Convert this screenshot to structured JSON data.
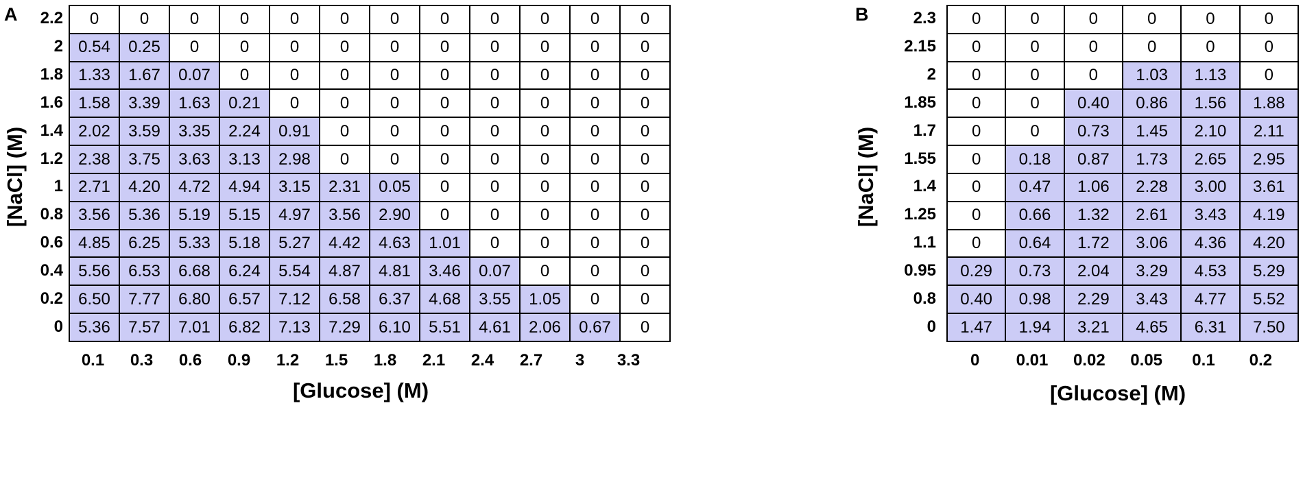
{
  "chart_data": [
    {
      "type": "heatmap",
      "panel": "A",
      "xlabel": "[Glucose]  (M)",
      "ylabel": "[NaCl]  (M)",
      "x": [
        "0.1",
        "0.3",
        "0.6",
        "0.9",
        "1.2",
        "1.5",
        "1.8",
        "2.1",
        "2.4",
        "2.7",
        "3",
        "3.3"
      ],
      "y": [
        "2.2",
        "2",
        "1.8",
        "1.6",
        "1.4",
        "1.2",
        "1",
        "0.8",
        "0.6",
        "0.4",
        "0.2",
        "0"
      ],
      "values": [
        [
          "0",
          "0",
          "0",
          "0",
          "0",
          "0",
          "0",
          "0",
          "0",
          "0",
          "0",
          "0"
        ],
        [
          "0.54",
          "0.25",
          "0",
          "0",
          "0",
          "0",
          "0",
          "0",
          "0",
          "0",
          "0",
          "0"
        ],
        [
          "1.33",
          "1.67",
          "0.07",
          "0",
          "0",
          "0",
          "0",
          "0",
          "0",
          "0",
          "0",
          "0"
        ],
        [
          "1.58",
          "3.39",
          "1.63",
          "0.21",
          "0",
          "0",
          "0",
          "0",
          "0",
          "0",
          "0",
          "0"
        ],
        [
          "2.02",
          "3.59",
          "3.35",
          "2.24",
          "0.91",
          "0",
          "0",
          "0",
          "0",
          "0",
          "0",
          "0"
        ],
        [
          "2.38",
          "3.75",
          "3.63",
          "3.13",
          "2.98",
          "0",
          "0",
          "0",
          "0",
          "0",
          "0",
          "0"
        ],
        [
          "2.71",
          "4.20",
          "4.72",
          "4.94",
          "3.15",
          "2.31",
          "0.05",
          "0",
          "0",
          "0",
          "0",
          "0"
        ],
        [
          "3.56",
          "5.36",
          "5.19",
          "5.15",
          "4.97",
          "3.56",
          "2.90",
          "0",
          "0",
          "0",
          "0",
          "0"
        ],
        [
          "4.85",
          "6.25",
          "5.33",
          "5.18",
          "5.27",
          "4.42",
          "4.63",
          "1.01",
          "0",
          "0",
          "0",
          "0"
        ],
        [
          "5.56",
          "6.53",
          "6.68",
          "6.24",
          "5.54",
          "4.87",
          "4.81",
          "3.46",
          "0.07",
          "0",
          "0",
          "0"
        ],
        [
          "6.50",
          "7.77",
          "6.80",
          "6.57",
          "7.12",
          "6.58",
          "6.37",
          "4.68",
          "3.55",
          "1.05",
          "0",
          "0"
        ],
        [
          "5.36",
          "7.57",
          "7.01",
          "6.82",
          "7.13",
          "7.29",
          "6.10",
          "5.51",
          "4.61",
          "2.06",
          "0.67",
          "0"
        ]
      ],
      "colors": {
        "positive": "#ccccf6",
        "zero": "#ffffff"
      }
    },
    {
      "type": "heatmap",
      "panel": "B",
      "xlabel": "[Glucose]  (M)",
      "ylabel": "[NaCl]  (M)",
      "x": [
        "0",
        "0.01",
        "0.02",
        "0.05",
        "0.1",
        "0.2"
      ],
      "y": [
        "2.3",
        "2.15",
        "2",
        "1.85",
        "1.7",
        "1.55",
        "1.4",
        "1.25",
        "1.1",
        "0.95",
        "0.8",
        "0"
      ],
      "values": [
        [
          "0",
          "0",
          "0",
          "0",
          "0",
          "0"
        ],
        [
          "0",
          "0",
          "0",
          "0",
          "0",
          "0"
        ],
        [
          "0",
          "0",
          "0",
          "1.03",
          "1.13",
          "0"
        ],
        [
          "0",
          "0",
          "0.40",
          "0.86",
          "1.56",
          "1.88"
        ],
        [
          "0",
          "0",
          "0.73",
          "1.45",
          "2.10",
          "2.11"
        ],
        [
          "0",
          "0.18",
          "0.87",
          "1.73",
          "2.65",
          "2.95"
        ],
        [
          "0",
          "0.47",
          "1.06",
          "2.28",
          "3.00",
          "3.61"
        ],
        [
          "0",
          "0.66",
          "1.32",
          "2.61",
          "3.43",
          "4.19"
        ],
        [
          "0",
          "0.64",
          "1.72",
          "3.06",
          "4.36",
          "4.20"
        ],
        [
          "0.29",
          "0.73",
          "2.04",
          "3.29",
          "4.53",
          "5.29"
        ],
        [
          "0.40",
          "0.98",
          "2.29",
          "3.43",
          "4.77",
          "5.52"
        ],
        [
          "1.47",
          "1.94",
          "3.21",
          "4.65",
          "6.31",
          "7.50"
        ]
      ],
      "colors": {
        "positive": "#ccccf6",
        "zero": "#ffffff"
      }
    }
  ]
}
